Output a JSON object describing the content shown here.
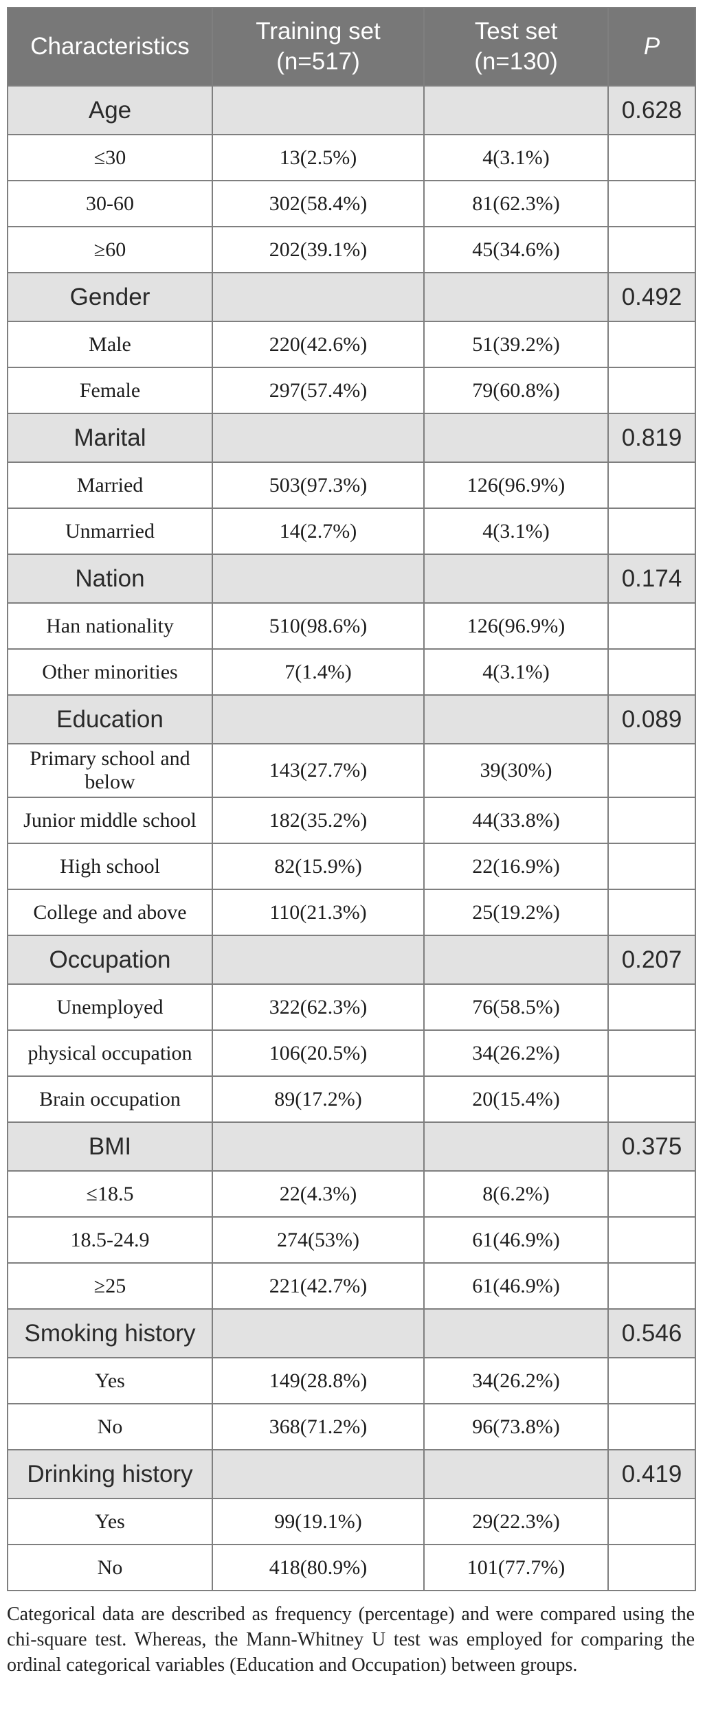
{
  "colors": {
    "header_bg": "#787878",
    "category_row_bg": "#e2e2e2",
    "border": "#7f7f7f",
    "header_text": "#ffffff",
    "body_text": "#1c1c1c"
  },
  "table": {
    "header": {
      "columns": [
        "Characteristics",
        "Training set\n(n=517)",
        "Test set\n(n=130)",
        "P"
      ]
    },
    "rows": [
      {
        "type": "category",
        "label": "Age",
        "training": "",
        "test": "",
        "p": "0.628"
      },
      {
        "type": "item",
        "label": "≤30",
        "training": "13(2.5%)",
        "test": "4(3.1%)",
        "p": ""
      },
      {
        "type": "item",
        "label": "30-60",
        "training": "302(58.4%)",
        "test": "81(62.3%)",
        "p": ""
      },
      {
        "type": "item",
        "label": "≥60",
        "training": "202(39.1%)",
        "test": "45(34.6%)",
        "p": ""
      },
      {
        "type": "category",
        "label": "Gender",
        "training": "",
        "test": "",
        "p": "0.492"
      },
      {
        "type": "item",
        "label": "Male",
        "training": "220(42.6%)",
        "test": "51(39.2%)",
        "p": ""
      },
      {
        "type": "item",
        "label": "Female",
        "training": "297(57.4%)",
        "test": "79(60.8%)",
        "p": ""
      },
      {
        "type": "category",
        "label": "Marital",
        "training": "",
        "test": "",
        "p": "0.819"
      },
      {
        "type": "item",
        "label": "Married",
        "training": "503(97.3%)",
        "test": "126(96.9%)",
        "p": ""
      },
      {
        "type": "item",
        "label": "Unmarried",
        "training": "14(2.7%)",
        "test": "4(3.1%)",
        "p": ""
      },
      {
        "type": "category",
        "label": "Nation",
        "training": "",
        "test": "",
        "p": "0.174"
      },
      {
        "type": "item",
        "label": "Han nationality",
        "training": "510(98.6%)",
        "test": "126(96.9%)",
        "p": ""
      },
      {
        "type": "item",
        "label": "Other minorities",
        "training": "7(1.4%)",
        "test": "4(3.1%)",
        "p": ""
      },
      {
        "type": "category",
        "label": "Education",
        "training": "",
        "test": "",
        "p": "0.089"
      },
      {
        "type": "item",
        "label": "Primary school and below",
        "training": "143(27.7%)",
        "test": "39(30%)",
        "p": ""
      },
      {
        "type": "item",
        "label": "Junior middle school",
        "training": "182(35.2%)",
        "test": "44(33.8%)",
        "p": ""
      },
      {
        "type": "item",
        "label": "High school",
        "training": "82(15.9%)",
        "test": "22(16.9%)",
        "p": ""
      },
      {
        "type": "item",
        "label": "College and above",
        "training": "110(21.3%)",
        "test": "25(19.2%)",
        "p": ""
      },
      {
        "type": "category",
        "label": "Occupation",
        "training": "",
        "test": "",
        "p": "0.207"
      },
      {
        "type": "item",
        "label": "Unemployed",
        "training": "322(62.3%)",
        "test": "76(58.5%)",
        "p": ""
      },
      {
        "type": "item",
        "label": "physical occupation",
        "training": "106(20.5%)",
        "test": "34(26.2%)",
        "p": ""
      },
      {
        "type": "item",
        "label": "Brain occupation",
        "training": "89(17.2%)",
        "test": "20(15.4%)",
        "p": ""
      },
      {
        "type": "category",
        "label": "BMI",
        "training": "",
        "test": "",
        "p": "0.375"
      },
      {
        "type": "item",
        "label": "≤18.5",
        "training": "22(4.3%)",
        "test": "8(6.2%)",
        "p": ""
      },
      {
        "type": "item",
        "label": "18.5-24.9",
        "training": "274(53%)",
        "test": "61(46.9%)",
        "p": ""
      },
      {
        "type": "item",
        "label": "≥25",
        "training": "221(42.7%)",
        "test": "61(46.9%)",
        "p": ""
      },
      {
        "type": "category",
        "label": "Smoking history",
        "training": "",
        "test": "",
        "p": "0.546"
      },
      {
        "type": "item",
        "label": "Yes",
        "training": "149(28.8%)",
        "test": "34(26.2%)",
        "p": ""
      },
      {
        "type": "item",
        "label": "No",
        "training": "368(71.2%)",
        "test": "96(73.8%)",
        "p": ""
      },
      {
        "type": "category",
        "label": "Drinking history",
        "training": "",
        "test": "",
        "p": "0.419"
      },
      {
        "type": "item",
        "label": "Yes",
        "training": "99(19.1%)",
        "test": "29(22.3%)",
        "p": ""
      },
      {
        "type": "item",
        "label": "No",
        "training": "418(80.9%)",
        "test": "101(77.7%)",
        "p": ""
      }
    ]
  },
  "footnote": "Categorical data are described as frequency (percentage) and were compared using the chi-square test. Whereas, the Mann-Whitney U test was employed for comparing the ordinal categorical variables (Education and Occupation) between groups."
}
